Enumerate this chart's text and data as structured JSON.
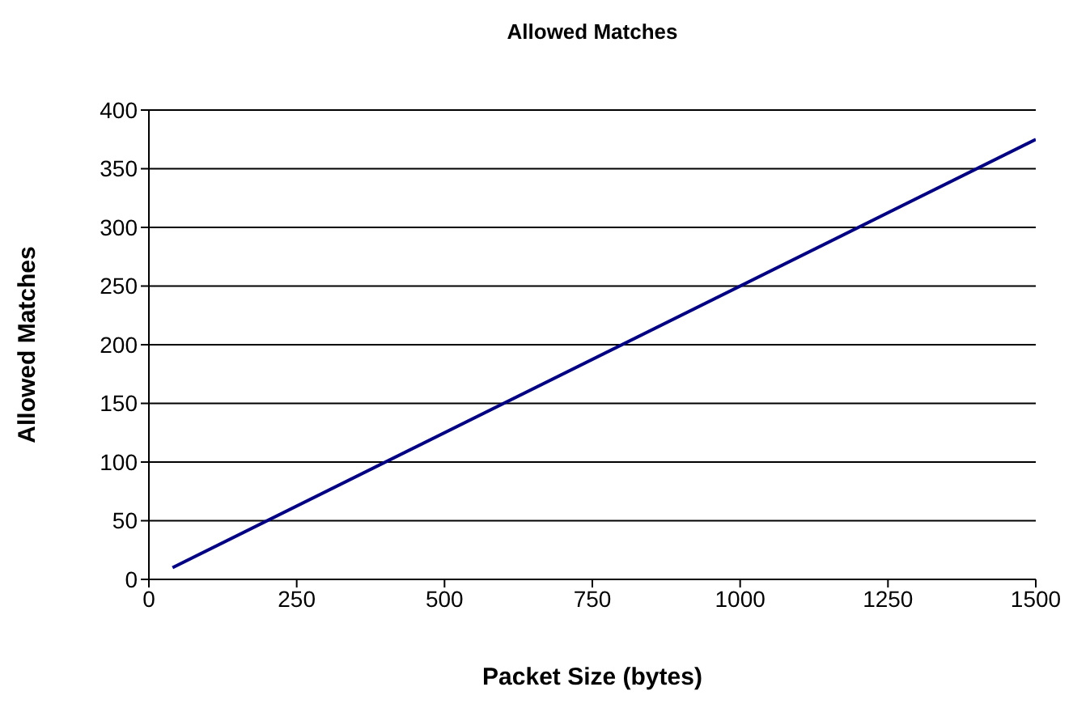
{
  "chart_data": {
    "type": "line",
    "title": "Allowed Matches",
    "xlabel": "Packet Size (bytes)",
    "ylabel": "Allowed Matches",
    "x": [
      40,
      1500
    ],
    "series": [
      {
        "color": "#000080",
        "values": [
          10,
          375
        ]
      }
    ],
    "xlim": [
      0,
      1500
    ],
    "xticks": [
      0,
      250,
      500,
      750,
      1000,
      1250,
      1500
    ],
    "ylim": [
      0,
      400
    ],
    "yticks": [
      0,
      50,
      100,
      150,
      200,
      250,
      300,
      350,
      400
    ],
    "grid": "y",
    "legend": false,
    "marker": "none",
    "line_style": "solid"
  }
}
